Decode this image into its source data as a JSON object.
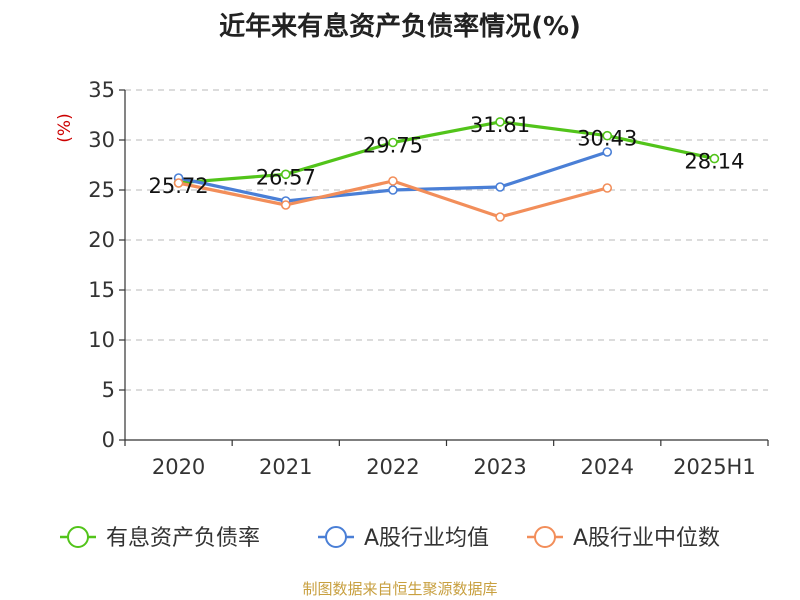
{
  "title": "近年来有息资产负债率情况(%)",
  "source": "制图数据来自恒生聚源数据库",
  "colors": {
    "primary": "#52c41a",
    "industry_avg": "#4a7fd6",
    "industry_median": "#f28e5a",
    "unit_label": "#cc0000",
    "grid": "#c8c8c8",
    "axis": "#333333"
  },
  "chart_data": {
    "type": "line",
    "ylabel": "(%)",
    "xlabel": "",
    "ylim": [
      0,
      35
    ],
    "yticks": [
      0,
      5,
      10,
      15,
      20,
      25,
      30,
      35
    ],
    "grid": true,
    "legend_position": "bottom",
    "categories": [
      "2020",
      "2021",
      "2022",
      "2023",
      "2024",
      "2025H1"
    ],
    "series": [
      {
        "name": "有息资产负债率",
        "color": "#52c41a",
        "values": [
          25.72,
          26.57,
          29.75,
          31.81,
          30.43,
          28.14
        ],
        "show_labels": true
      },
      {
        "name": "A股行业均值",
        "color": "#4a7fd6",
        "values": [
          26.2,
          23.9,
          25.0,
          25.3,
          28.8,
          null
        ],
        "show_labels": false
      },
      {
        "name": "A股行业中位数",
        "color": "#f28e5a",
        "values": [
          25.7,
          23.5,
          25.9,
          22.3,
          25.2,
          null
        ],
        "show_labels": false
      }
    ]
  }
}
